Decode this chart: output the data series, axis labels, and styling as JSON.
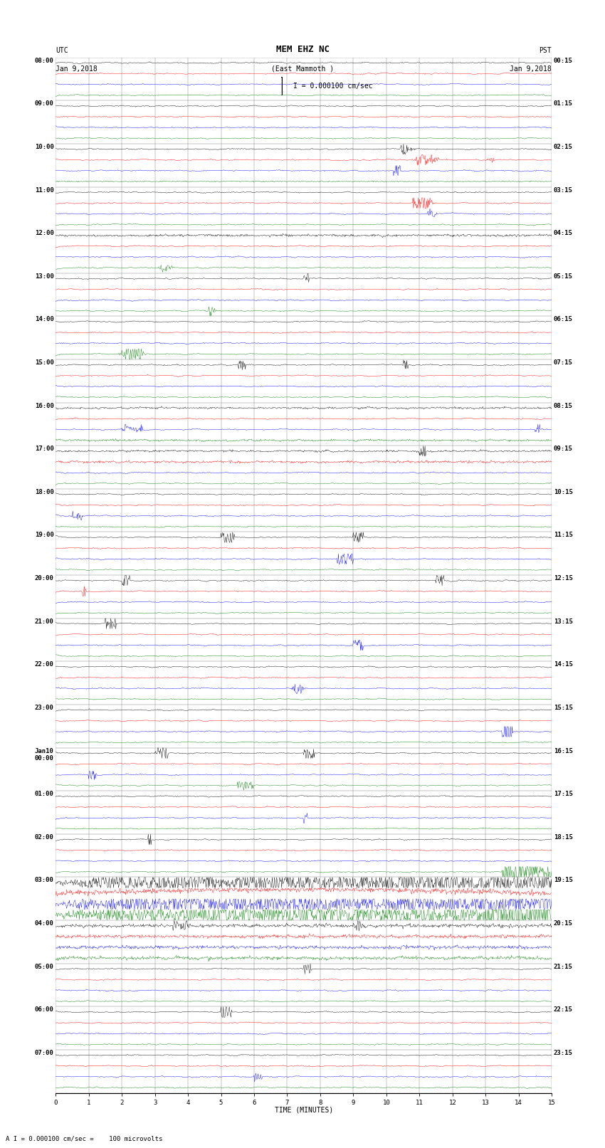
{
  "title_line1": "MEM EHZ NC",
  "title_line2": "(East Mammoth )",
  "scale_label": "I = 0.000100 cm/sec",
  "bottom_label": "A I = 0.000100 cm/sec =    100 microvolts",
  "xlabel": "TIME (MINUTES)",
  "bg_color": "white",
  "xlim": [
    0,
    15
  ],
  "xticks": [
    0,
    1,
    2,
    3,
    4,
    5,
    6,
    7,
    8,
    9,
    10,
    11,
    12,
    13,
    14,
    15
  ],
  "font_size_title": 9,
  "font_size_labels": 7,
  "font_size_ticks": 6.5,
  "colors_cycle": [
    "black",
    "red",
    "blue",
    "green"
  ],
  "num_hours": 24,
  "traces_per_hour": 4,
  "noise_base": 0.025,
  "left_time_labels": [
    "08:00",
    "09:00",
    "10:00",
    "11:00",
    "12:00",
    "13:00",
    "14:00",
    "15:00",
    "16:00",
    "17:00",
    "18:00",
    "19:00",
    "20:00",
    "21:00",
    "22:00",
    "23:00",
    "Jan10\n00:00",
    "01:00",
    "02:00",
    "03:00",
    "04:00",
    "05:00",
    "06:00",
    "07:00"
  ],
  "right_time_labels": [
    "00:15",
    "01:15",
    "02:15",
    "03:15",
    "04:15",
    "05:15",
    "06:15",
    "07:15",
    "08:15",
    "09:15",
    "10:15",
    "11:15",
    "12:15",
    "13:15",
    "14:15",
    "15:15",
    "16:15",
    "17:15",
    "18:15",
    "19:15",
    "20:15",
    "21:15",
    "22:15",
    "23:15"
  ]
}
